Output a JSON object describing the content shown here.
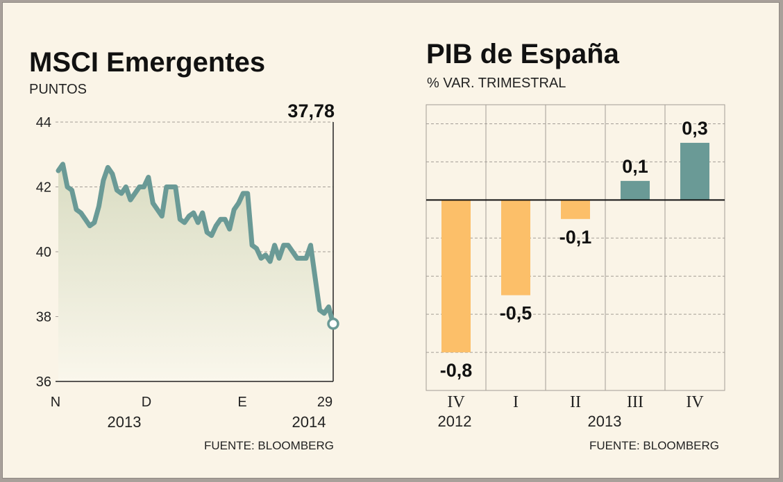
{
  "chart_data": [
    {
      "type": "area",
      "title": "MSCI Emergentes",
      "subtitle": "PUNTOS",
      "last_value_label": "37,78",
      "source": "FUENTE: BLOOMBERG",
      "ylim": [
        36,
        44
      ],
      "yticks": [
        44,
        42,
        40,
        38,
        36
      ],
      "x_tick_labels": [
        "N",
        "D",
        "E",
        "29"
      ],
      "x_year_labels": [
        "2013",
        "2014"
      ],
      "series": [
        {
          "name": "MSCI Emergentes",
          "color": "#6a9a96",
          "values": [
            42.5,
            42.7,
            42.0,
            41.9,
            41.3,
            41.2,
            41.0,
            40.8,
            40.9,
            41.4,
            42.2,
            42.6,
            42.4,
            41.9,
            41.8,
            42.0,
            41.6,
            41.8,
            42.0,
            42.0,
            42.3,
            41.5,
            41.3,
            41.1,
            42.0,
            42.0,
            42.0,
            41.0,
            40.9,
            41.1,
            41.2,
            40.9,
            41.2,
            40.6,
            40.5,
            40.8,
            41.0,
            41.0,
            40.7,
            41.3,
            41.5,
            41.8,
            41.8,
            40.2,
            40.1,
            39.8,
            39.9,
            39.7,
            40.2,
            39.8,
            40.2,
            40.2,
            40.0,
            39.8,
            39.8,
            39.8,
            40.2,
            39.2,
            38.2,
            38.1,
            38.3,
            37.78
          ]
        }
      ],
      "colors": {
        "line": "#6a9a96",
        "fill_top": "#d9dcc2",
        "fill_bottom": "#faf7ec",
        "marker_fill": "#ffffff"
      }
    },
    {
      "type": "bar",
      "title": "PIB de España",
      "subtitle": "% VAR. TRIMESTRAL",
      "source": "FUENTE: BLOOMBERG",
      "categories": [
        "IV",
        "I",
        "II",
        "III",
        "IV"
      ],
      "values": [
        -0.8,
        -0.5,
        -0.1,
        0.1,
        0.3
      ],
      "value_labels": [
        "-0,8",
        "-0,5",
        "-0,1",
        "0,1",
        "0,3"
      ],
      "year_labels": [
        "2012",
        "2013"
      ],
      "ylim": [
        -1.0,
        0.5
      ],
      "colors": {
        "positive": "#6a9a96",
        "negative": "#fcbf69"
      }
    }
  ]
}
